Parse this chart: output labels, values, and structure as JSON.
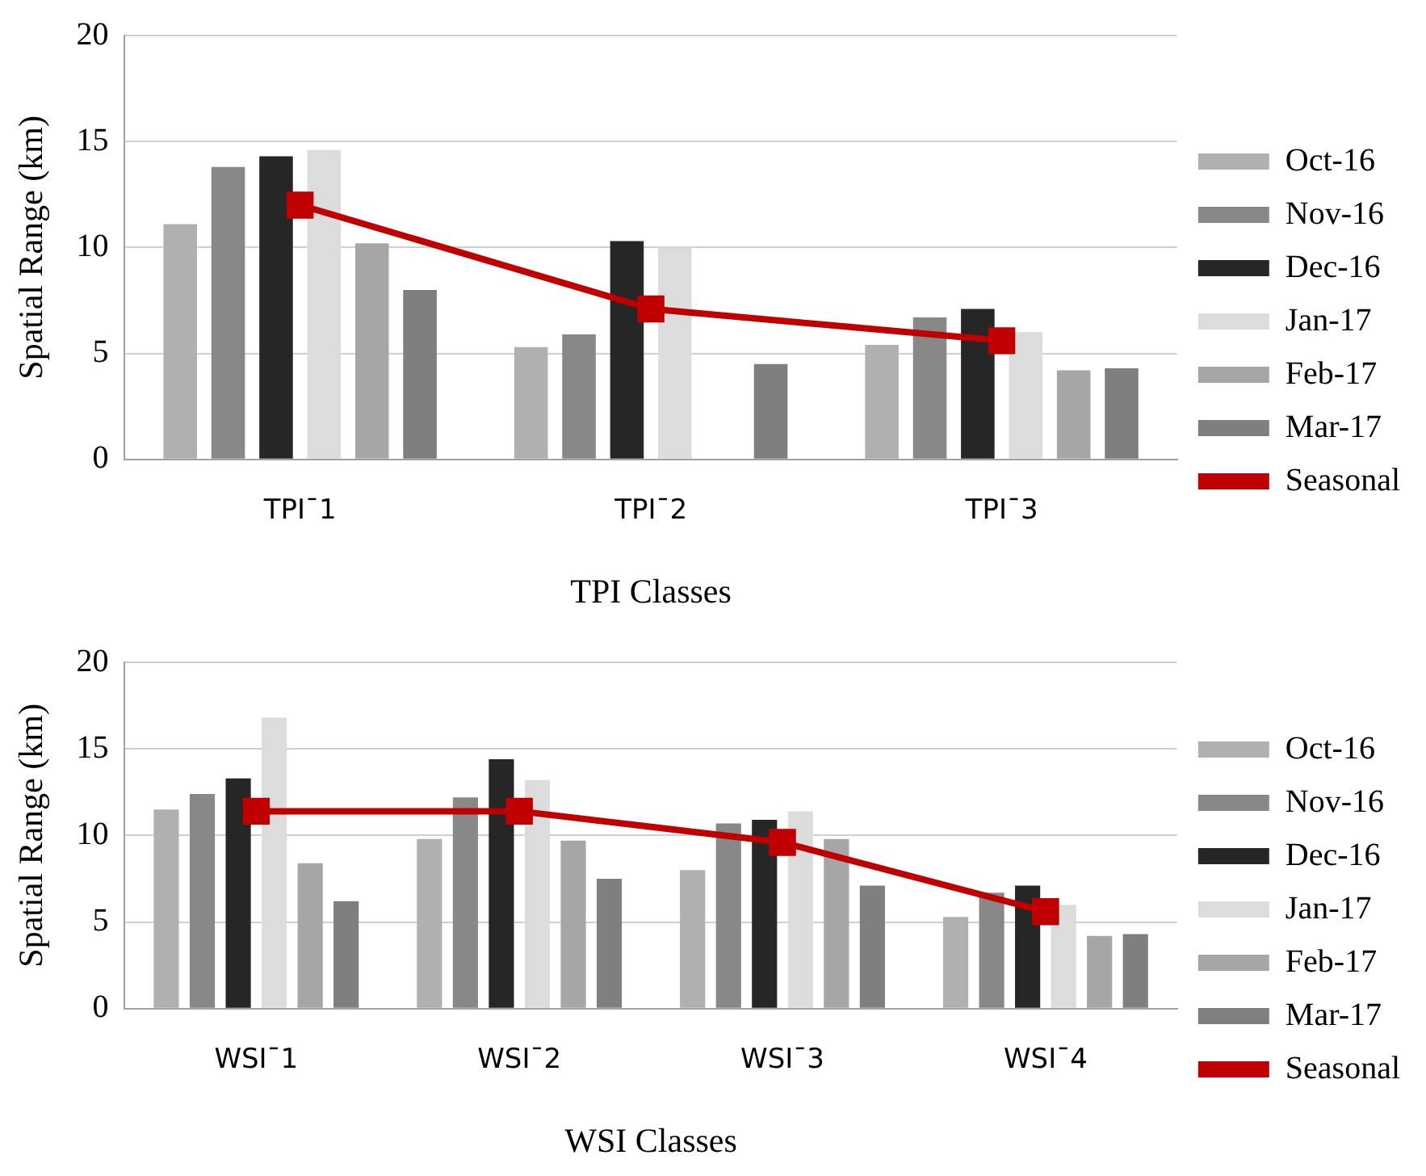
{
  "chart_data": [
    {
      "type": "bar",
      "xlabel": "TPI Classes",
      "ylabel": "Spatial Range (km)",
      "categories": [
        "TPI¯1",
        "TPI¯2",
        "TPI¯3"
      ],
      "ylim": [
        0,
        20
      ],
      "yticks": [
        0,
        5,
        10,
        15,
        20
      ],
      "grid": "y",
      "legend": "right",
      "marker": "square",
      "series": [
        {
          "name": "Oct-16",
          "color": "#b0b0b0",
          "values": [
            11.1,
            5.3,
            5.4
          ]
        },
        {
          "name": "Nov-16",
          "color": "#888888",
          "values": [
            13.8,
            5.9,
            6.7
          ]
        },
        {
          "name": "Dec-16",
          "color": "#262626",
          "values": [
            14.3,
            10.3,
            7.1
          ]
        },
        {
          "name": "Jan-17",
          "color": "#dcdcdc",
          "values": [
            14.6,
            10.0,
            6.0
          ]
        },
        {
          "name": "Feb-17",
          "color": "#a6a6a6",
          "values": [
            10.2,
            null,
            4.2
          ]
        },
        {
          "name": "Mar-17",
          "color": "#7f7f7f",
          "values": [
            8.0,
            4.5,
            4.3
          ]
        },
        {
          "name": "Seasonal",
          "type": "line",
          "color": "#c00000",
          "values": [
            12.0,
            7.1,
            5.6
          ]
        }
      ]
    },
    {
      "type": "bar",
      "xlabel": "WSI Classes",
      "ylabel": "Spatial Range (km)",
      "categories": [
        "WSI¯1",
        "WSI¯2",
        "WSI¯3",
        "WSI¯4"
      ],
      "ylim": [
        0,
        20
      ],
      "yticks": [
        0,
        5,
        10,
        15,
        20
      ],
      "grid": "y",
      "legend": "right",
      "marker": "square",
      "series": [
        {
          "name": "Oct-16",
          "color": "#b0b0b0",
          "values": [
            11.5,
            9.8,
            8.0,
            5.3
          ]
        },
        {
          "name": "Nov-16",
          "color": "#888888",
          "values": [
            12.4,
            12.2,
            10.7,
            6.7
          ]
        },
        {
          "name": "Dec-16",
          "color": "#262626",
          "values": [
            13.3,
            14.4,
            10.9,
            7.1
          ]
        },
        {
          "name": "Jan-17",
          "color": "#dcdcdc",
          "values": [
            16.8,
            13.2,
            11.4,
            6.0
          ]
        },
        {
          "name": "Feb-17",
          "color": "#a6a6a6",
          "values": [
            8.4,
            9.7,
            9.8,
            4.2
          ]
        },
        {
          "name": "Mar-17",
          "color": "#7f7f7f",
          "values": [
            6.2,
            7.5,
            7.1,
            4.3
          ]
        },
        {
          "name": "Seasonal",
          "type": "line",
          "color": "#c00000",
          "values": [
            11.4,
            11.4,
            9.6,
            5.6
          ]
        }
      ]
    }
  ]
}
